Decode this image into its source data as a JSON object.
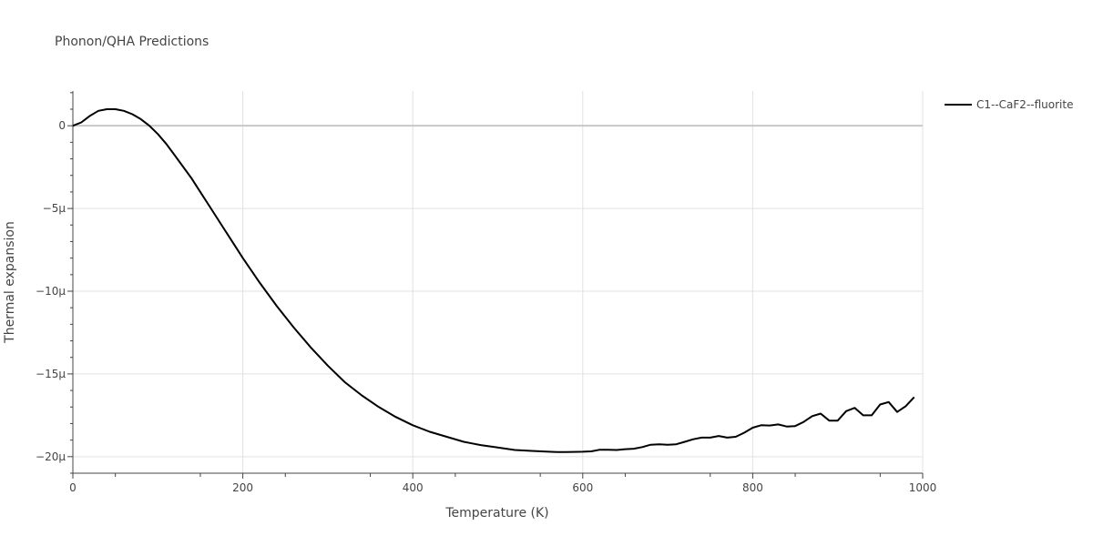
{
  "chart_data": {
    "type": "line",
    "title": "Phonon/QHA Predictions",
    "xlabel": "Temperature (K)",
    "ylabel": "Thermal expansion",
    "xlim": [
      0,
      1000
    ],
    "ylim": [
      -21,
      2.1
    ],
    "x_ticks": [
      {
        "value": 0,
        "label": "0"
      },
      {
        "value": 200,
        "label": "200"
      },
      {
        "value": 400,
        "label": "400"
      },
      {
        "value": 600,
        "label": "600"
      },
      {
        "value": 800,
        "label": "800"
      },
      {
        "value": 1000,
        "label": "1000"
      }
    ],
    "y_ticks": [
      {
        "value": 0,
        "label": "0"
      },
      {
        "value": -5,
        "label": "−5μ"
      },
      {
        "value": -10,
        "label": "−10μ"
      },
      {
        "value": -15,
        "label": "−15μ"
      },
      {
        "value": -20,
        "label": "−20μ"
      }
    ],
    "grid": true,
    "legend_position": "top-right",
    "series": [
      {
        "name": "C1--CaF2--fluorite",
        "color": "#000000",
        "x": [
          0,
          10,
          20,
          30,
          40,
          50,
          60,
          70,
          80,
          90,
          100,
          110,
          120,
          130,
          140,
          150,
          160,
          170,
          180,
          190,
          200,
          220,
          240,
          260,
          280,
          300,
          320,
          340,
          360,
          380,
          400,
          420,
          440,
          460,
          470,
          480,
          500,
          520,
          540,
          560,
          570,
          580,
          600,
          610,
          620,
          630,
          640,
          650,
          660,
          670,
          680,
          690,
          700,
          710,
          720,
          730,
          740,
          750,
          760,
          770,
          780,
          790,
          800,
          810,
          820,
          830,
          840,
          850,
          860,
          870,
          880,
          890,
          900,
          910,
          920,
          930,
          940,
          950,
          960,
          970,
          980,
          990
        ],
        "y": [
          0,
          0.2,
          0.6,
          0.9,
          1.0,
          1.0,
          0.9,
          0.7,
          0.4,
          0.0,
          -0.5,
          -1.1,
          -1.8,
          -2.5,
          -3.2,
          -4.0,
          -4.8,
          -5.6,
          -6.4,
          -7.2,
          -8.0,
          -9.5,
          -10.9,
          -12.2,
          -13.4,
          -14.5,
          -15.5,
          -16.3,
          -17.0,
          -17.6,
          -18.1,
          -18.5,
          -18.8,
          -19.1,
          -19.2,
          -19.3,
          -19.45,
          -19.6,
          -19.65,
          -19.7,
          -19.72,
          -19.72,
          -19.7,
          -19.68,
          -19.58,
          -19.58,
          -19.6,
          -19.55,
          -19.52,
          -19.42,
          -19.28,
          -19.25,
          -19.28,
          -19.25,
          -19.1,
          -18.95,
          -18.85,
          -18.85,
          -18.75,
          -18.85,
          -18.8,
          -18.55,
          -18.25,
          -18.1,
          -18.12,
          -18.05,
          -18.18,
          -18.15,
          -17.9,
          -17.55,
          -17.4,
          -17.82,
          -17.82,
          -17.25,
          -17.05,
          -17.5,
          -17.5,
          -16.85,
          -16.7,
          -17.3,
          -16.95,
          -16.4
        ]
      }
    ]
  }
}
